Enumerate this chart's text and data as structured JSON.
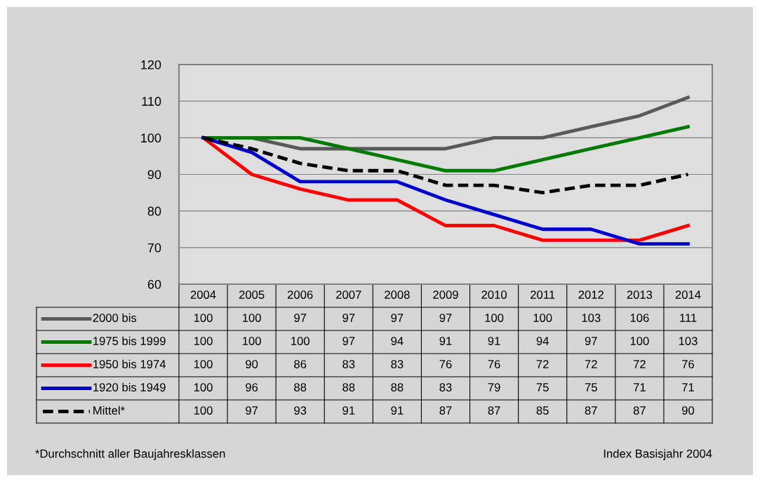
{
  "chart_data": {
    "type": "line",
    "categories": [
      "2004",
      "2005",
      "2006",
      "2007",
      "2008",
      "2009",
      "2010",
      "2011",
      "2012",
      "2013",
      "2014"
    ],
    "series": [
      {
        "name": "2000 bis",
        "color": "#595959",
        "values": [
          100,
          100,
          97,
          97,
          97,
          97,
          100,
          100,
          103,
          106,
          111
        ]
      },
      {
        "name": "1975 bis 1999",
        "color": "#007a00",
        "values": [
          100,
          100,
          100,
          97,
          94,
          91,
          91,
          94,
          97,
          100,
          103
        ]
      },
      {
        "name": "1950 bis 1974",
        "color": "#ff0000",
        "values": [
          100,
          90,
          86,
          83,
          83,
          76,
          76,
          72,
          72,
          72,
          76
        ]
      },
      {
        "name": "1920 bis 1949",
        "color": "#0000cc",
        "values": [
          100,
          96,
          88,
          88,
          88,
          83,
          79,
          75,
          75,
          71,
          71
        ]
      },
      {
        "name": "Mittel*",
        "color": "#000000",
        "line_style": "dashed",
        "values": [
          100,
          97,
          93,
          91,
          91,
          87,
          87,
          85,
          87,
          87,
          90
        ]
      }
    ],
    "ylim": [
      60,
      120
    ],
    "yticks": [
      60,
      70,
      80,
      90,
      100,
      110,
      120
    ],
    "grid": "y",
    "legend": "bottom",
    "data_labels": true,
    "line_style": "solid",
    "marker": "none",
    "annotations": [
      "*Durchschnitt aller Baujahresklassen",
      "Index Basisjahr 2004"
    ]
  }
}
